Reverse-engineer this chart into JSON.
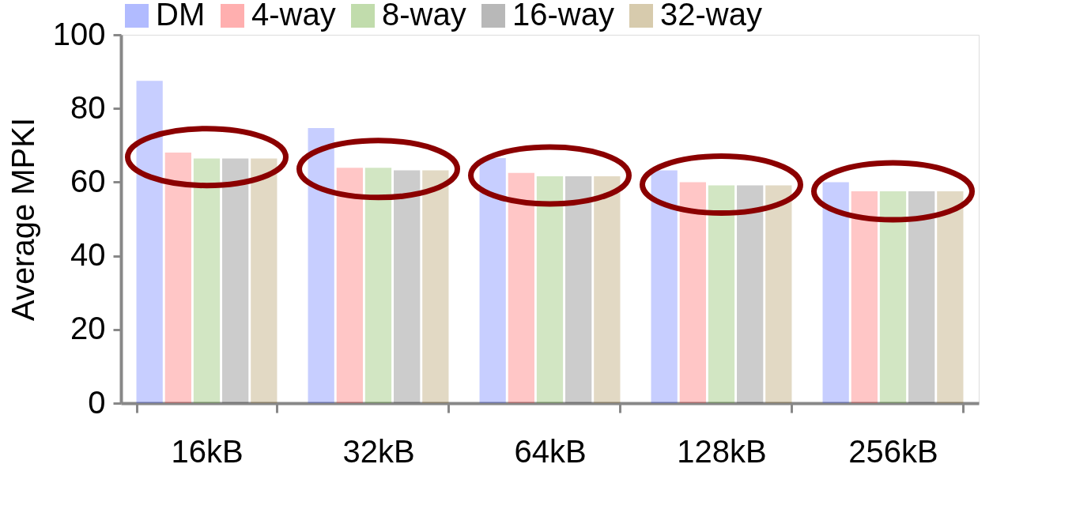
{
  "chart_data": {
    "type": "bar",
    "ylabel": "Average MPKI",
    "categories": [
      "16kB",
      "32kB",
      "64kB",
      "128kB",
      "256kB"
    ],
    "series": [
      {
        "name": "DM",
        "color": "#1f3dff",
        "values": [
          87.5,
          74.7,
          66.5,
          63.2,
          60.0
        ]
      },
      {
        "name": "4-way",
        "color": "#ff1a1a",
        "values": [
          68.0,
          63.9,
          62.5,
          60.0,
          57.5
        ]
      },
      {
        "name": "8-way",
        "color": "#4c9a10",
        "values": [
          66.4,
          63.9,
          61.6,
          59.1,
          57.5
        ]
      },
      {
        "name": "16-way",
        "color": "#333333",
        "values": [
          66.4,
          63.2,
          61.6,
          59.1,
          57.5
        ]
      },
      {
        "name": "32-way",
        "color": "#8b6914",
        "values": [
          66.4,
          63.2,
          61.6,
          59.1,
          57.5
        ]
      }
    ],
    "ylim": [
      0,
      100
    ],
    "yticks": [
      0,
      20,
      40,
      60,
      80,
      100
    ],
    "grid": false,
    "legend": "top"
  }
}
